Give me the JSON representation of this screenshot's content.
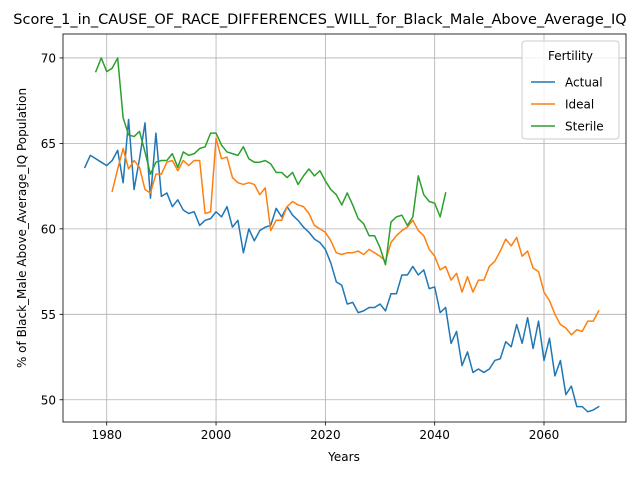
{
  "chart_data": {
    "type": "line",
    "title": "Score_1_in_CAUSE_OF_RACE_DIFFERENCES_WILL_for_Black_Male_Above_Average_IQ",
    "xlabel": "Years",
    "ylabel": "% of Black_Male Above_Average_IQ Population",
    "xlim": [
      1972,
      2075
    ],
    "ylim": [
      48.7,
      71.4
    ],
    "xticks": [
      1980,
      2000,
      2020,
      2040,
      2060
    ],
    "yticks": [
      50,
      55,
      60,
      65,
      70
    ],
    "xtick_labels": [
      "1980",
      "2000",
      "2020",
      "2040",
      "2060"
    ],
    "ytick_labels": [
      "50",
      "55",
      "60",
      "65",
      "70"
    ],
    "grid": true,
    "legend": {
      "title": "Fertility",
      "position": "top-right"
    },
    "series": [
      {
        "name": "Actual",
        "color": "#1f77b4",
        "points": [
          [
            1976,
            63.6
          ],
          [
            1977,
            64.3
          ],
          [
            1978,
            64.1
          ],
          [
            1979,
            63.9
          ],
          [
            1980,
            63.7
          ],
          [
            1981,
            64.0
          ],
          [
            1982,
            64.6
          ],
          [
            1983,
            62.7
          ],
          [
            1984,
            66.4
          ],
          [
            1985,
            62.3
          ],
          [
            1986,
            64.1
          ],
          [
            1987,
            66.2
          ],
          [
            1988,
            61.8
          ],
          [
            1989,
            65.6
          ],
          [
            1990,
            61.9
          ],
          [
            1991,
            62.1
          ],
          [
            1992,
            61.3
          ],
          [
            1993,
            61.7
          ],
          [
            1994,
            61.1
          ],
          [
            1995,
            60.9
          ],
          [
            1996,
            61.0
          ],
          [
            1997,
            60.2
          ],
          [
            1998,
            60.5
          ],
          [
            1999,
            60.6
          ],
          [
            2000,
            61.0
          ],
          [
            2001,
            60.7
          ],
          [
            2002,
            61.3
          ],
          [
            2003,
            60.1
          ],
          [
            2004,
            60.5
          ],
          [
            2005,
            58.6
          ],
          [
            2006,
            60.0
          ],
          [
            2007,
            59.3
          ],
          [
            2008,
            59.9
          ],
          [
            2009,
            60.1
          ],
          [
            2010,
            60.2
          ],
          [
            2011,
            61.2
          ],
          [
            2012,
            60.7
          ],
          [
            2013,
            61.3
          ],
          [
            2014,
            60.8
          ],
          [
            2015,
            60.5
          ],
          [
            2016,
            60.1
          ],
          [
            2017,
            59.8
          ],
          [
            2018,
            59.4
          ],
          [
            2019,
            59.2
          ],
          [
            2020,
            58.8
          ],
          [
            2021,
            58.0
          ],
          [
            2022,
            56.9
          ],
          [
            2023,
            56.7
          ],
          [
            2024,
            55.6
          ],
          [
            2025,
            55.7
          ],
          [
            2026,
            55.1
          ],
          [
            2027,
            55.2
          ],
          [
            2028,
            55.4
          ],
          [
            2029,
            55.4
          ],
          [
            2030,
            55.6
          ],
          [
            2031,
            55.2
          ],
          [
            2032,
            56.2
          ],
          [
            2033,
            56.2
          ],
          [
            2034,
            57.3
          ],
          [
            2035,
            57.3
          ],
          [
            2036,
            57.8
          ],
          [
            2037,
            57.3
          ],
          [
            2038,
            57.6
          ],
          [
            2039,
            56.5
          ],
          [
            2040,
            56.6
          ],
          [
            2041,
            55.1
          ],
          [
            2042,
            55.4
          ],
          [
            2043,
            53.3
          ],
          [
            2044,
            54.0
          ],
          [
            2045,
            52.0
          ],
          [
            2046,
            52.8
          ],
          [
            2047,
            51.6
          ],
          [
            2048,
            51.8
          ],
          [
            2049,
            51.6
          ],
          [
            2050,
            51.8
          ],
          [
            2051,
            52.3
          ],
          [
            2052,
            52.4
          ],
          [
            2053,
            53.4
          ],
          [
            2054,
            53.1
          ],
          [
            2055,
            54.4
          ],
          [
            2056,
            53.3
          ],
          [
            2057,
            54.8
          ],
          [
            2058,
            53.0
          ],
          [
            2059,
            54.6
          ],
          [
            2060,
            52.3
          ],
          [
            2061,
            53.6
          ],
          [
            2062,
            51.4
          ],
          [
            2063,
            52.3
          ],
          [
            2064,
            50.3
          ],
          [
            2065,
            50.8
          ],
          [
            2066,
            49.6
          ],
          [
            2067,
            49.6
          ],
          [
            2068,
            49.3
          ],
          [
            2069,
            49.4
          ],
          [
            2070,
            49.6
          ]
        ]
      },
      {
        "name": "Ideal",
        "color": "#ff7f0e",
        "points": [
          [
            1981,
            62.2
          ],
          [
            1982,
            63.5
          ],
          [
            1983,
            64.7
          ],
          [
            1984,
            63.5
          ],
          [
            1985,
            64.0
          ],
          [
            1986,
            63.6
          ],
          [
            1987,
            62.3
          ],
          [
            1988,
            62.1
          ],
          [
            1989,
            63.2
          ],
          [
            1990,
            63.2
          ],
          [
            1991,
            63.9
          ],
          [
            1992,
            64.0
          ],
          [
            1993,
            63.4
          ],
          [
            1994,
            64.0
          ],
          [
            1995,
            63.7
          ],
          [
            1996,
            64.0
          ],
          [
            1997,
            64.0
          ],
          [
            1998,
            60.9
          ],
          [
            1999,
            61.0
          ],
          [
            2000,
            65.3
          ],
          [
            2001,
            64.1
          ],
          [
            2002,
            64.2
          ],
          [
            2003,
            63.0
          ],
          [
            2004,
            62.7
          ],
          [
            2005,
            62.6
          ],
          [
            2006,
            62.7
          ],
          [
            2007,
            62.6
          ],
          [
            2008,
            62.0
          ],
          [
            2009,
            62.4
          ],
          [
            2010,
            59.9
          ],
          [
            2011,
            60.5
          ],
          [
            2012,
            60.5
          ],
          [
            2013,
            61.3
          ],
          [
            2014,
            61.6
          ],
          [
            2015,
            61.4
          ],
          [
            2016,
            61.3
          ],
          [
            2017,
            60.9
          ],
          [
            2018,
            60.2
          ],
          [
            2019,
            60.0
          ],
          [
            2020,
            59.8
          ],
          [
            2021,
            59.3
          ],
          [
            2022,
            58.6
          ],
          [
            2023,
            58.5
          ],
          [
            2024,
            58.6
          ],
          [
            2025,
            58.6
          ],
          [
            2026,
            58.7
          ],
          [
            2027,
            58.5
          ],
          [
            2028,
            58.8
          ],
          [
            2029,
            58.6
          ],
          [
            2030,
            58.4
          ],
          [
            2031,
            58.1
          ],
          [
            2032,
            59.2
          ],
          [
            2033,
            59.6
          ],
          [
            2034,
            59.9
          ],
          [
            2035,
            60.1
          ],
          [
            2036,
            60.5
          ],
          [
            2037,
            59.9
          ],
          [
            2038,
            59.6
          ],
          [
            2039,
            58.8
          ],
          [
            2040,
            58.4
          ],
          [
            2041,
            57.6
          ],
          [
            2042,
            57.8
          ],
          [
            2043,
            57.0
          ],
          [
            2044,
            57.4
          ],
          [
            2045,
            56.3
          ],
          [
            2046,
            57.2
          ],
          [
            2047,
            56.3
          ],
          [
            2048,
            57.0
          ],
          [
            2049,
            57.0
          ],
          [
            2050,
            57.8
          ],
          [
            2051,
            58.1
          ],
          [
            2052,
            58.7
          ],
          [
            2053,
            59.4
          ],
          [
            2054,
            59.0
          ],
          [
            2055,
            59.5
          ],
          [
            2056,
            58.4
          ],
          [
            2057,
            58.7
          ],
          [
            2058,
            57.7
          ],
          [
            2059,
            57.5
          ],
          [
            2060,
            56.3
          ],
          [
            2061,
            55.8
          ],
          [
            2062,
            55.0
          ],
          [
            2063,
            54.4
          ],
          [
            2064,
            54.2
          ],
          [
            2065,
            53.8
          ],
          [
            2066,
            54.1
          ],
          [
            2067,
            54.0
          ],
          [
            2068,
            54.6
          ],
          [
            2069,
            54.6
          ],
          [
            2070,
            55.2
          ]
        ]
      },
      {
        "name": "Sterile",
        "color": "#2ca02c",
        "points": [
          [
            1978,
            69.2
          ],
          [
            1979,
            70.0
          ],
          [
            1980,
            69.2
          ],
          [
            1981,
            69.4
          ],
          [
            1982,
            70.0
          ],
          [
            1983,
            66.5
          ],
          [
            1984,
            65.5
          ],
          [
            1985,
            65.4
          ],
          [
            1986,
            65.7
          ],
          [
            1987,
            64.5
          ],
          [
            1988,
            63.2
          ],
          [
            1989,
            63.9
          ],
          [
            1990,
            64.0
          ],
          [
            1991,
            64.0
          ],
          [
            1992,
            64.4
          ],
          [
            1993,
            63.6
          ],
          [
            1994,
            64.5
          ],
          [
            1995,
            64.3
          ],
          [
            1996,
            64.4
          ],
          [
            1997,
            64.7
          ],
          [
            1998,
            64.8
          ],
          [
            1999,
            65.6
          ],
          [
            2000,
            65.6
          ],
          [
            2001,
            64.9
          ],
          [
            2002,
            64.5
          ],
          [
            2003,
            64.4
          ],
          [
            2004,
            64.3
          ],
          [
            2005,
            64.8
          ],
          [
            2006,
            64.1
          ],
          [
            2007,
            63.9
          ],
          [
            2008,
            63.9
          ],
          [
            2009,
            64.0
          ],
          [
            2010,
            63.8
          ],
          [
            2011,
            63.3
          ],
          [
            2012,
            63.3
          ],
          [
            2013,
            63.0
          ],
          [
            2014,
            63.3
          ],
          [
            2015,
            62.6
          ],
          [
            2016,
            63.1
          ],
          [
            2017,
            63.5
          ],
          [
            2018,
            63.1
          ],
          [
            2019,
            63.4
          ],
          [
            2020,
            62.8
          ],
          [
            2021,
            62.3
          ],
          [
            2022,
            62.0
          ],
          [
            2023,
            61.4
          ],
          [
            2024,
            62.1
          ],
          [
            2025,
            61.4
          ],
          [
            2026,
            60.6
          ],
          [
            2027,
            60.3
          ],
          [
            2028,
            59.6
          ],
          [
            2029,
            59.6
          ],
          [
            2030,
            58.9
          ],
          [
            2031,
            57.9
          ],
          [
            2032,
            60.4
          ],
          [
            2033,
            60.7
          ],
          [
            2034,
            60.8
          ],
          [
            2035,
            60.2
          ],
          [
            2036,
            60.7
          ],
          [
            2037,
            63.1
          ],
          [
            2038,
            62.0
          ],
          [
            2039,
            61.6
          ],
          [
            2040,
            61.5
          ],
          [
            2041,
            60.7
          ],
          [
            2042,
            62.1
          ]
        ]
      }
    ]
  }
}
